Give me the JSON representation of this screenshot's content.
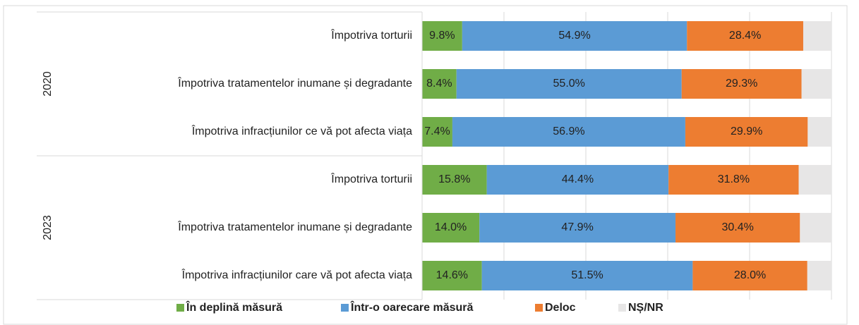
{
  "chart_data": {
    "type": "bar",
    "orientation": "horizontal",
    "stacked": true,
    "categories": [
      "Împotriva torturii",
      "Împotriva tratamentelor inumane și degradante",
      "Împotriva infracțiunilor ce  vă pot afecta viața",
      "Împotriva torturii",
      "Împotriva tratamentelor inumane și degradante",
      "Împotriva infracțiunilor care vă pot afecta viața"
    ],
    "category_groups": [
      "2020",
      "2020",
      "2020",
      "2023",
      "2023",
      "2023"
    ],
    "series": [
      {
        "name": "În deplină măsură",
        "color": "#70ad47",
        "values": [
          9.8,
          8.4,
          7.4,
          15.8,
          14.0,
          14.6
        ],
        "value_labels": [
          "9.8%",
          "8.4%",
          "7.4%",
          "15.8%",
          "14.0%",
          "14.6%"
        ]
      },
      {
        "name": "Într-o oarecare măsură",
        "color": "#5b9bd5",
        "values": [
          54.9,
          55.0,
          56.9,
          44.4,
          47.9,
          51.5
        ],
        "value_labels": [
          "54.9%",
          "55.0%",
          "56.9%",
          "44.4%",
          "47.9%",
          "51.5%"
        ]
      },
      {
        "name": "Deloc",
        "color": "#ed7d31",
        "values": [
          28.4,
          29.3,
          29.9,
          31.8,
          30.4,
          28.0
        ],
        "value_labels": [
          "28.4%",
          "29.3%",
          "29.9%",
          "31.8%",
          "30.4%",
          "28.0%"
        ]
      },
      {
        "name": "NȘ/NR",
        "color": "#e7e6e6",
        "values": [
          6.9,
          7.3,
          5.8,
          8.0,
          7.7,
          5.9
        ]
      }
    ],
    "xlim": [
      0,
      100
    ],
    "xticks": [
      0,
      20,
      40,
      60,
      80,
      100
    ],
    "grid": true,
    "legend": "bottom"
  }
}
